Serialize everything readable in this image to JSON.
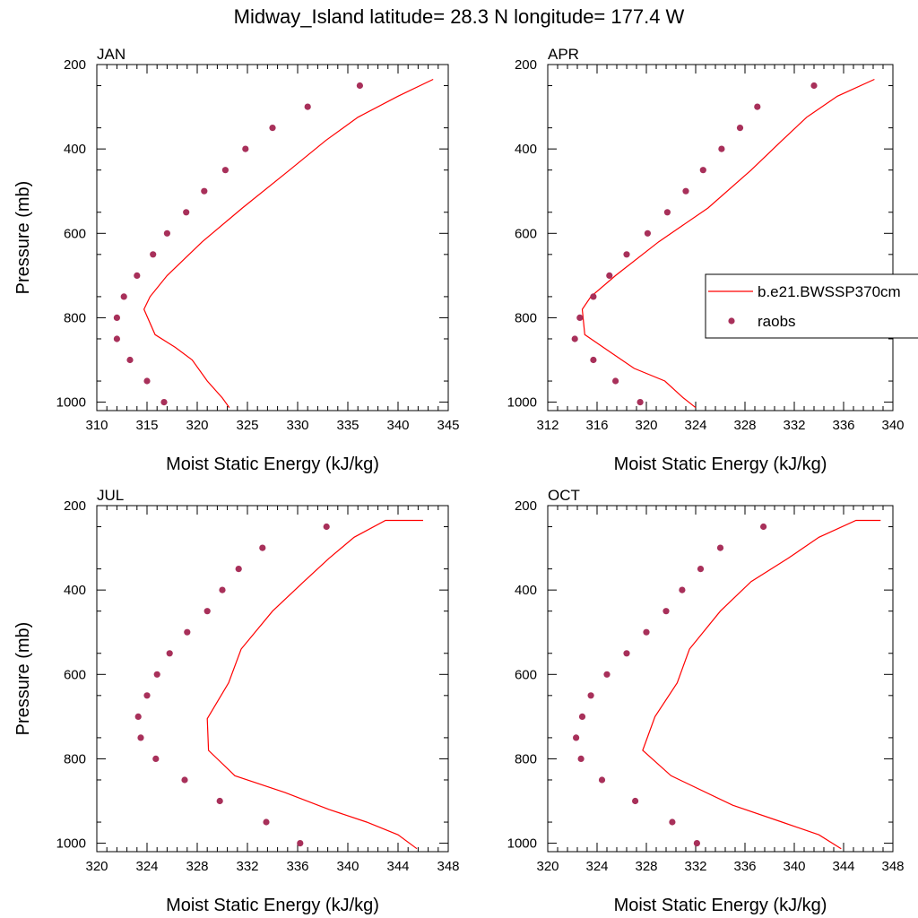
{
  "title": "Midway_Island  latitude= 28.3 N longitude= 177.4 W",
  "colors": {
    "model": "#ff0000",
    "obs": "#a8305a",
    "axis": "#000000"
  },
  "legend": {
    "placement": "right",
    "entries": [
      "b.e21.BWSSP370cm",
      "raobs"
    ]
  },
  "chart_data": [
    {
      "type": "line",
      "panel": "JAN",
      "xlabel": "Moist Static Energy (kJ/kg)",
      "ylabel": "Pressure (mb)",
      "xlim": [
        310,
        345
      ],
      "ylim": [
        1020,
        200
      ],
      "xticks": [
        310,
        315,
        320,
        325,
        330,
        335,
        340,
        345
      ],
      "yticks": [
        200,
        400,
        600,
        800,
        1000
      ],
      "series": [
        {
          "name": "b.e21.BWSSP370cm",
          "style": "line",
          "x": [
            323.2,
            322.5,
            321.0,
            319.5,
            317.8,
            315.8,
            314.7,
            315.3,
            317.0,
            320.5,
            324.5,
            329.2,
            332.8,
            336.0,
            340.0,
            343.5
          ],
          "y": [
            1013,
            990,
            950,
            900,
            870,
            840,
            780,
            750,
            700,
            620,
            540,
            450,
            380,
            325,
            275,
            235
          ]
        },
        {
          "name": "raobs",
          "style": "markers",
          "x": [
            316.7,
            315.0,
            313.3,
            312.0,
            312.0,
            312.7,
            314.0,
            315.6,
            317.0,
            318.9,
            320.7,
            322.8,
            324.8,
            327.5,
            331.0,
            336.2
          ],
          "y": [
            1000,
            950,
            900,
            850,
            800,
            750,
            700,
            650,
            600,
            550,
            500,
            450,
            400,
            350,
            300,
            250
          ]
        }
      ]
    },
    {
      "type": "line",
      "panel": "APR",
      "xlabel": "Moist Static Energy (kJ/kg)",
      "ylabel": "",
      "xlim": [
        312,
        340
      ],
      "ylim": [
        1020,
        200
      ],
      "xticks": [
        312,
        316,
        320,
        324,
        328,
        332,
        336,
        340
      ],
      "yticks": [
        200,
        400,
        600,
        800,
        1000
      ],
      "series": [
        {
          "name": "b.e21.BWSSP370cm",
          "style": "line",
          "x": [
            324.0,
            323.0,
            321.5,
            319.0,
            317.0,
            315.0,
            314.8,
            315.5,
            317.5,
            321.0,
            325.0,
            328.5,
            331.0,
            333.0,
            335.5,
            338.5
          ],
          "y": [
            1013,
            990,
            950,
            920,
            880,
            840,
            780,
            750,
            700,
            620,
            540,
            450,
            380,
            325,
            275,
            235
          ]
        },
        {
          "name": "raobs",
          "style": "markers",
          "x": [
            319.5,
            317.5,
            315.7,
            314.2,
            314.6,
            315.7,
            317.0,
            318.4,
            320.1,
            321.7,
            323.2,
            324.6,
            326.1,
            327.6,
            329.0,
            333.6
          ],
          "y": [
            1000,
            950,
            900,
            850,
            800,
            750,
            700,
            650,
            600,
            550,
            500,
            450,
            400,
            350,
            300,
            250
          ]
        }
      ]
    },
    {
      "type": "line",
      "panel": "JUL",
      "xlabel": "Moist Static Energy (kJ/kg)",
      "ylabel": "Pressure (mb)",
      "xlim": [
        320,
        348
      ],
      "ylim": [
        1020,
        200
      ],
      "xticks": [
        320,
        324,
        328,
        332,
        336,
        340,
        344,
        348
      ],
      "yticks": [
        200,
        400,
        600,
        800,
        1000
      ],
      "series": [
        {
          "name": "b.e21.BWSSP370cm",
          "style": "line",
          "x": [
            345.5,
            344.0,
            341.5,
            338.5,
            335.0,
            331.0,
            328.9,
            328.8,
            330.5,
            331.5,
            334.0,
            336.5,
            338.5,
            340.5,
            343.0,
            346.0
          ],
          "y": [
            1013,
            980,
            950,
            920,
            880,
            840,
            780,
            705,
            620,
            540,
            450,
            380,
            325,
            275,
            235,
            235
          ]
        },
        {
          "name": "raobs",
          "style": "markers",
          "x": [
            336.2,
            333.5,
            329.8,
            327.0,
            324.7,
            323.5,
            323.3,
            324.0,
            324.8,
            325.8,
            327.2,
            328.8,
            330.0,
            331.3,
            333.2,
            338.3
          ],
          "y": [
            1000,
            950,
            900,
            850,
            800,
            750,
            700,
            650,
            600,
            550,
            500,
            450,
            400,
            350,
            300,
            250
          ]
        }
      ]
    },
    {
      "type": "line",
      "panel": "OCT",
      "xlabel": "Moist Static Energy (kJ/kg)",
      "ylabel": "",
      "xlim": [
        320,
        348
      ],
      "ylim": [
        1020,
        200
      ],
      "xticks": [
        320,
        324,
        328,
        332,
        336,
        340,
        344,
        348
      ],
      "yticks": [
        200,
        400,
        600,
        800,
        1000
      ],
      "series": [
        {
          "name": "b.e21.BWSSP370cm",
          "style": "line",
          "x": [
            343.8,
            342.0,
            339.0,
            335.0,
            330.0,
            327.7,
            328.7,
            330.5,
            331.5,
            334.0,
            336.5,
            339.5,
            342.0,
            345.0,
            347.0
          ],
          "y": [
            1013,
            980,
            950,
            910,
            840,
            780,
            700,
            620,
            540,
            450,
            380,
            325,
            275,
            235,
            235
          ]
        },
        {
          "name": "raobs",
          "style": "markers",
          "x": [
            332.1,
            330.1,
            327.1,
            324.4,
            322.7,
            322.3,
            322.8,
            323.5,
            324.8,
            326.4,
            328.0,
            329.6,
            330.9,
            332.4,
            334.0,
            337.5
          ],
          "y": [
            1000,
            950,
            900,
            850,
            800,
            750,
            700,
            650,
            600,
            550,
            500,
            450,
            400,
            350,
            300,
            250
          ]
        }
      ]
    }
  ]
}
